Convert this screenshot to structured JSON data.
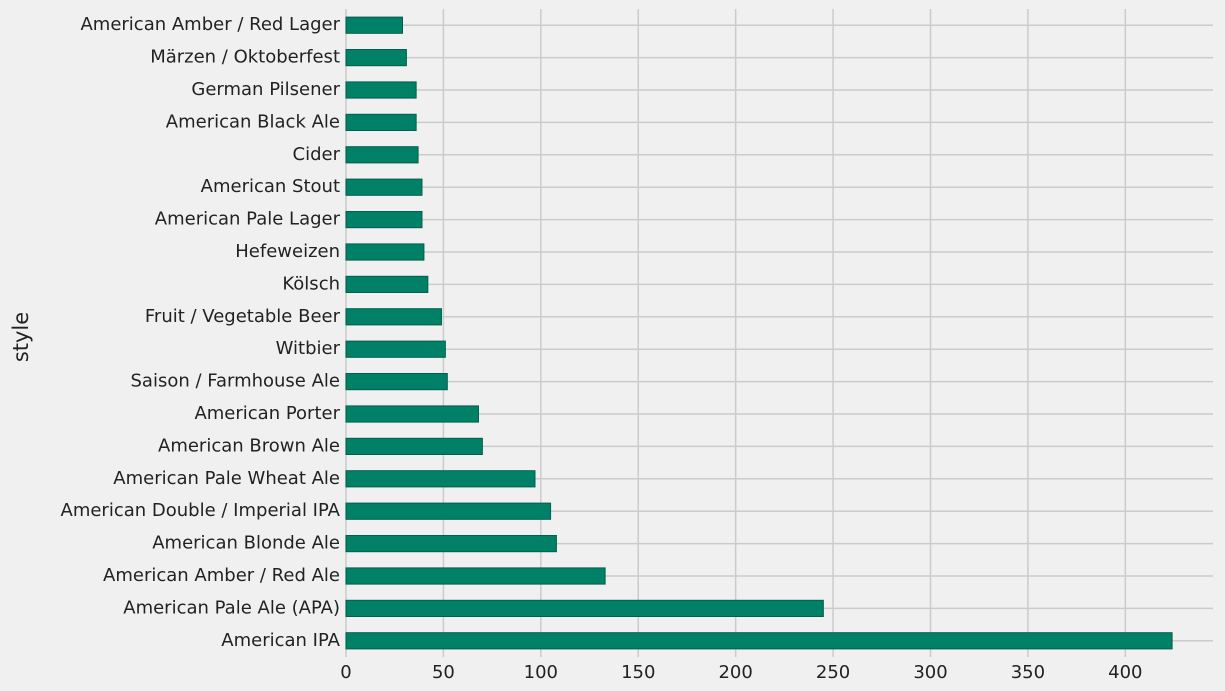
{
  "chart_data": {
    "type": "barh",
    "ylabel": "style",
    "categories": [
      "American IPA",
      "American Pale Ale (APA)",
      "American Amber / Red Ale",
      "American Blonde Ale",
      "American Double / Imperial IPA",
      "American Pale Wheat Ale",
      "American Brown Ale",
      "American Porter",
      "Saison / Farmhouse Ale",
      "Witbier",
      "Fruit / Vegetable Beer",
      "Kölsch",
      "Hefeweizen",
      "American Pale Lager",
      "American Stout",
      "Cider",
      "American Black Ale",
      "German Pilsener",
      "Märzen / Oktoberfest",
      "American Amber / Red Lager"
    ],
    "values": [
      424,
      245,
      133,
      108,
      105,
      97,
      70,
      68,
      52,
      51,
      49,
      42,
      40,
      39,
      39,
      37,
      36,
      36,
      31,
      29
    ],
    "color": "#008066",
    "xlim": [
      0,
      445
    ],
    "xticks": [
      0,
      50,
      100,
      150,
      200,
      250,
      300,
      350,
      400
    ],
    "grid": true
  }
}
